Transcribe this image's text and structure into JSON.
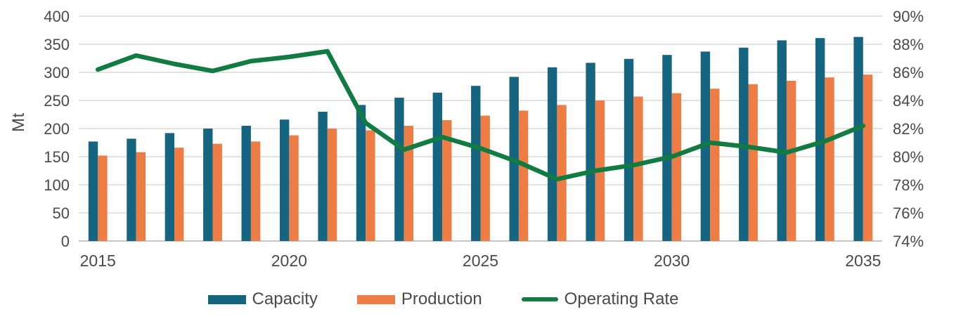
{
  "chart_data": {
    "type": "combo-bar-line",
    "title": "",
    "categories": [
      2015,
      2016,
      2017,
      2018,
      2019,
      2020,
      2021,
      2022,
      2023,
      2024,
      2025,
      2026,
      2027,
      2028,
      2029,
      2030,
      2031,
      2032,
      2033,
      2034,
      2035
    ],
    "series": [
      {
        "name": "Capacity",
        "type": "bar",
        "axis": "left",
        "color": "#166580",
        "values": [
          177,
          182,
          192,
          200,
          205,
          216,
          230,
          242,
          255,
          264,
          276,
          292,
          309,
          317,
          324,
          331,
          337,
          344,
          357,
          361,
          363
        ]
      },
      {
        "name": "Production",
        "type": "bar",
        "axis": "left",
        "color": "#EE7D45",
        "values": [
          152,
          158,
          166,
          173,
          177,
          188,
          200,
          197,
          205,
          215,
          223,
          232,
          242,
          250,
          257,
          263,
          271,
          279,
          285,
          291,
          296
        ]
      },
      {
        "name": "Operating Rate",
        "type": "line",
        "axis": "right",
        "color": "#107C41",
        "values": [
          86.2,
          87.2,
          86.6,
          86.1,
          86.8,
          87.1,
          87.5,
          82.4,
          80.5,
          81.4,
          80.6,
          79.6,
          78.4,
          79.0,
          79.4,
          80.0,
          81.0,
          80.7,
          80.3,
          81.1,
          82.2
        ]
      }
    ],
    "left_axis": {
      "label": "Mt",
      "min": 0,
      "max": 400,
      "step": 50,
      "ticks": [
        "0",
        "50",
        "100",
        "150",
        "200",
        "250",
        "300",
        "350",
        "400"
      ]
    },
    "right_axis": {
      "min": 74,
      "max": 90,
      "step": 2,
      "ticks": [
        "74%",
        "76%",
        "78%",
        "80%",
        "82%",
        "84%",
        "86%",
        "88%",
        "90%"
      ]
    },
    "x_ticks": [
      "2015",
      "2020",
      "2025",
      "2030",
      "2035"
    ],
    "x_tick_every": 5,
    "grid": true,
    "legend_position": "bottom",
    "colors": {
      "gridline": "#D9D9D9",
      "baseline": "#C6C6C6",
      "tick_text": "#4a4a4a"
    }
  }
}
